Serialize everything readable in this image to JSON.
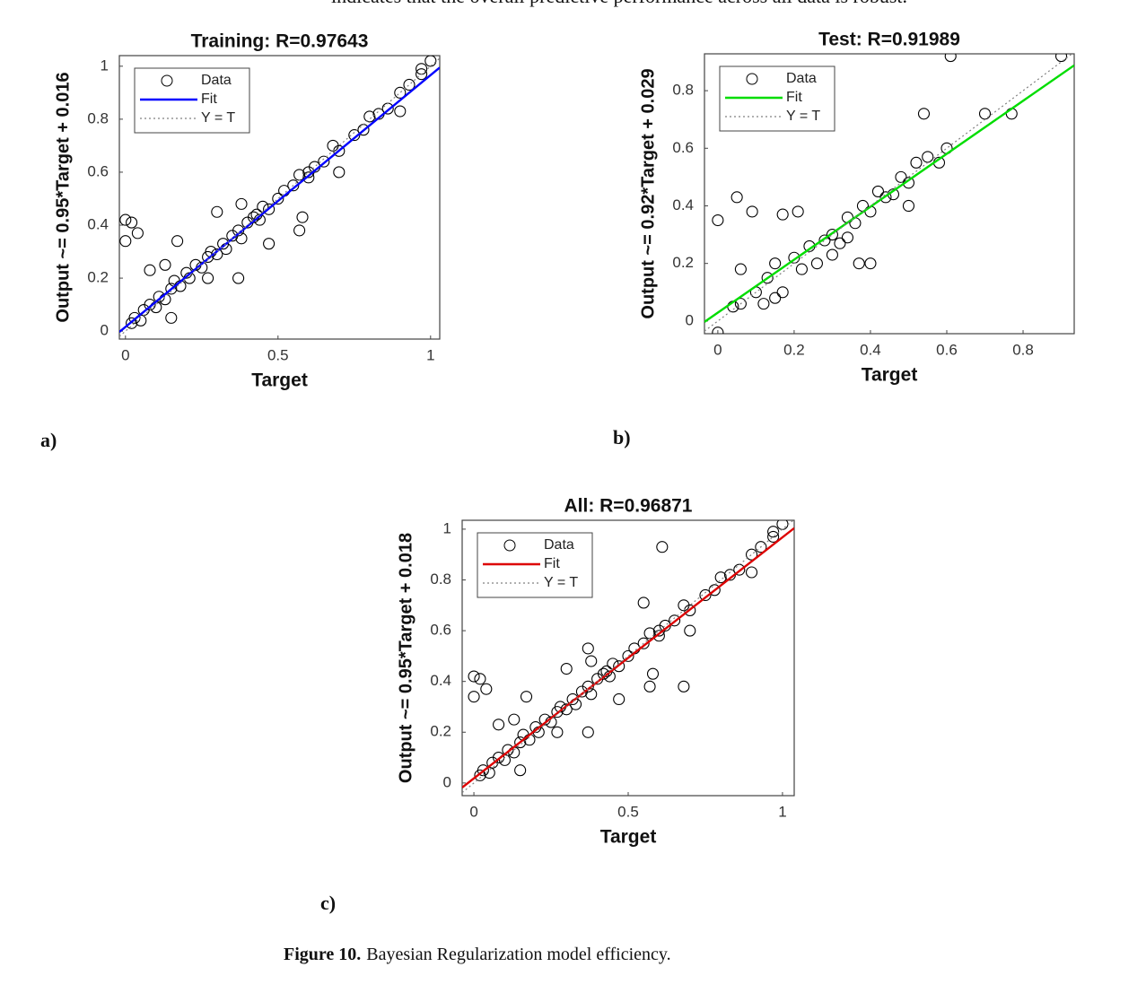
{
  "text_above": "indicates that the overall predictive performance across all data is robust.",
  "panel_labels": [
    "a)",
    "b)",
    "c)"
  ],
  "caption": {
    "label": "Figure 10.",
    "text": "Bayesian Regularization model efficiency."
  },
  "chart_data": [
    {
      "type": "scatter",
      "title": "Training: R=0.97643",
      "xlabel": "Target",
      "ylabel": "Output ~= 0.95*Target + 0.016",
      "xlim": [
        -0.02,
        1.03
      ],
      "ylim": [
        -0.03,
        1.04
      ],
      "xticks": [
        0,
        0.5,
        1
      ],
      "yticks": [
        0,
        0.2,
        0.4,
        0.6,
        0.8,
        1
      ],
      "legend": "upper left",
      "series": [
        {
          "name": "Data",
          "color": "#000000",
          "mode": "markers",
          "x": [
            0.02,
            0.03,
            0.05,
            0.06,
            0.08,
            0.1,
            0.11,
            0.13,
            0.15,
            0.16,
            0.18,
            0.2,
            0.21,
            0.23,
            0.25,
            0.27,
            0.28,
            0.3,
            0.32,
            0.33,
            0.35,
            0.37,
            0.38,
            0.4,
            0.42,
            0.44,
            0.45,
            0.47,
            0.5,
            0.52,
            0.55,
            0.57,
            0.6,
            0.62,
            0.65,
            0.68,
            0.7,
            0.75,
            0.8,
            0.83,
            0.86,
            0.9,
            0.93,
            0.97,
            1.0,
            0,
            0.02,
            0.04,
            0,
            0.08,
            0.17,
            0.13,
            0.3,
            0.38,
            0.43,
            0.6,
            0.7,
            0.58,
            0.57,
            0.47,
            0.37,
            0.27,
            0.15,
            0.78,
            0.9,
            0.97
          ],
          "values": [
            0.03,
            0.05,
            0.04,
            0.08,
            0.1,
            0.09,
            0.13,
            0.12,
            0.16,
            0.19,
            0.17,
            0.22,
            0.2,
            0.25,
            0.24,
            0.28,
            0.3,
            0.29,
            0.33,
            0.31,
            0.36,
            0.38,
            0.35,
            0.41,
            0.43,
            0.42,
            0.47,
            0.46,
            0.5,
            0.53,
            0.55,
            0.59,
            0.6,
            0.62,
            0.64,
            0.7,
            0.68,
            0.74,
            0.81,
            0.82,
            0.84,
            0.9,
            0.93,
            0.97,
            1.02,
            0.42,
            0.41,
            0.37,
            0.34,
            0.23,
            0.34,
            0.25,
            0.45,
            0.48,
            0.44,
            0.58,
            0.6,
            0.43,
            0.38,
            0.33,
            0.2,
            0.2,
            0.05,
            0.76,
            0.83,
            0.99
          ]
        },
        {
          "name": "Fit",
          "color": "#0000ff",
          "mode": "lines",
          "x": [
            -0.02,
            1.03
          ],
          "values": [
            -0.003,
            0.995
          ]
        },
        {
          "name": "Y = T",
          "color": "#808080",
          "mode": "lines",
          "dash": "dotted",
          "x": [
            -0.02,
            1.03
          ],
          "values": [
            -0.02,
            1.03
          ]
        }
      ]
    },
    {
      "type": "scatter",
      "title": "Test: R=0.91989",
      "xlabel": "Target",
      "ylabel": "Output ~= 0.92*Target + 0.029",
      "xlim": [
        -0.035,
        0.934
      ],
      "ylim": [
        -0.044,
        0.928
      ],
      "xticks": [
        0,
        0.2,
        0.4,
        0.6,
        0.8
      ],
      "yticks": [
        0,
        0.2,
        0.4,
        0.6,
        0.8
      ],
      "legend": "upper left",
      "series": [
        {
          "name": "Data",
          "color": "#000000",
          "mode": "markers",
          "x": [
            0,
            0.05,
            0.09,
            0.17,
            0.21,
            0.06,
            0,
            0.04,
            0.06,
            0.1,
            0.13,
            0.15,
            0.17,
            0.2,
            0.22,
            0.24,
            0.26,
            0.28,
            0.3,
            0.32,
            0.34,
            0.36,
            0.38,
            0.4,
            0.42,
            0.44,
            0.46,
            0.48,
            0.5,
            0.52,
            0.55,
            0.58,
            0.6,
            0.37,
            0.4,
            0.3,
            0.15,
            0.12,
            0.54,
            0.7,
            0.77,
            0.61,
            0.9,
            0.5,
            0.34
          ],
          "values": [
            0.35,
            0.43,
            0.38,
            0.37,
            0.38,
            0.18,
            -0.04,
            0.05,
            0.06,
            0.1,
            0.15,
            0.2,
            0.1,
            0.22,
            0.18,
            0.26,
            0.2,
            0.28,
            0.3,
            0.27,
            0.36,
            0.34,
            0.4,
            0.38,
            0.45,
            0.43,
            0.44,
            0.5,
            0.48,
            0.55,
            0.57,
            0.55,
            0.6,
            0.2,
            0.2,
            0.23,
            0.08,
            0.06,
            0.72,
            0.72,
            0.72,
            0.92,
            0.92,
            0.4,
            0.29
          ]
        },
        {
          "name": "Fit",
          "color": "#00dd00",
          "mode": "lines",
          "x": [
            -0.035,
            0.934
          ],
          "values": [
            -0.003,
            0.888
          ]
        },
        {
          "name": "Y = T",
          "color": "#808080",
          "mode": "lines",
          "dash": "dotted",
          "x": [
            -0.035,
            0.934
          ],
          "values": [
            -0.035,
            0.934
          ]
        }
      ]
    },
    {
      "type": "scatter",
      "title": "All: R=0.96871",
      "xlabel": "Target",
      "ylabel": "Output ~= 0.95*Target + 0.018",
      "xlim": [
        -0.038,
        1.038
      ],
      "ylim": [
        -0.05,
        1.035
      ],
      "xticks": [
        0,
        0.5,
        1
      ],
      "yticks": [
        0,
        0.2,
        0.4,
        0.6,
        0.8,
        1
      ],
      "legend": "upper left",
      "series": [
        {
          "name": "Data",
          "color": "#000000",
          "mode": "markers",
          "x": [
            0.02,
            0.03,
            0.05,
            0.06,
            0.08,
            0.1,
            0.11,
            0.13,
            0.15,
            0.16,
            0.18,
            0.2,
            0.21,
            0.23,
            0.25,
            0.27,
            0.28,
            0.3,
            0.32,
            0.33,
            0.35,
            0.37,
            0.38,
            0.4,
            0.42,
            0.44,
            0.45,
            0.47,
            0.5,
            0.52,
            0.55,
            0.57,
            0.6,
            0.62,
            0.65,
            0.68,
            0.7,
            0.75,
            0.8,
            0.83,
            0.86,
            0.9,
            0.93,
            0.97,
            1.0,
            0,
            0.02,
            0.04,
            0,
            0.08,
            0.17,
            0.13,
            0.3,
            0.38,
            0.43,
            0.6,
            0.7,
            0.58,
            0.57,
            0.47,
            0.37,
            0.27,
            0.15,
            0.78,
            0.9,
            0.97,
            0.61,
            0.55,
            0.37,
            0.68
          ],
          "values": [
            0.03,
            0.05,
            0.04,
            0.08,
            0.1,
            0.09,
            0.13,
            0.12,
            0.16,
            0.19,
            0.17,
            0.22,
            0.2,
            0.25,
            0.24,
            0.28,
            0.3,
            0.29,
            0.33,
            0.31,
            0.36,
            0.38,
            0.35,
            0.41,
            0.43,
            0.42,
            0.47,
            0.46,
            0.5,
            0.53,
            0.55,
            0.59,
            0.6,
            0.62,
            0.64,
            0.7,
            0.68,
            0.74,
            0.81,
            0.82,
            0.84,
            0.9,
            0.93,
            0.97,
            1.02,
            0.42,
            0.41,
            0.37,
            0.34,
            0.23,
            0.34,
            0.25,
            0.45,
            0.48,
            0.44,
            0.58,
            0.6,
            0.43,
            0.38,
            0.33,
            0.2,
            0.2,
            0.05,
            0.76,
            0.83,
            0.99,
            0.93,
            0.71,
            0.53,
            0.38
          ]
        },
        {
          "name": "Fit",
          "color": "#dd0000",
          "mode": "lines",
          "x": [
            -0.038,
            1.038
          ],
          "values": [
            -0.018,
            1.004
          ]
        },
        {
          "name": "Y = T",
          "color": "#808080",
          "mode": "lines",
          "dash": "dotted",
          "x": [
            -0.038,
            1.038
          ],
          "values": [
            -0.038,
            1.038
          ]
        }
      ]
    }
  ]
}
